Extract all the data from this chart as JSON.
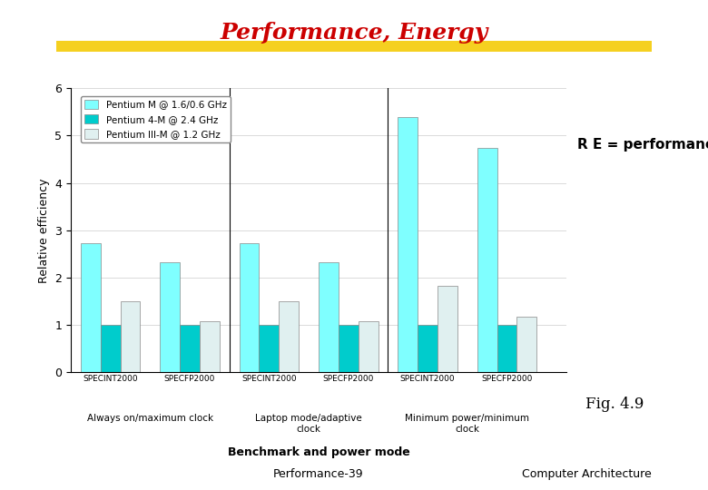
{
  "title": "Performance, Energy",
  "title_color": "#cc0000",
  "re_label": "R E = performance / power",
  "ylabel": "Relative efficiency",
  "xlabel": "Benchmark and power mode",
  "footer_left": "Performance-39",
  "footer_right": "Computer Architecture",
  "fig_label": "Fig. 4.9",
  "ylim": [
    0,
    6
  ],
  "yticks": [
    0,
    1,
    2,
    3,
    4,
    5,
    6
  ],
  "legend_labels": [
    "Pentium M @ 1.6/0.6 GHz",
    "Pentium 4-M @ 2.4 GHz",
    "Pentium III-M @ 1.2 GHz"
  ],
  "legend_colors": [
    "#7fffff",
    "#00cccc",
    "#e0f0f0"
  ],
  "bar_groups": [
    {
      "label": "SPECINT2000",
      "values": [
        2.73,
        1.0,
        1.5
      ]
    },
    {
      "label": "SPECFP2000",
      "values": [
        2.33,
        1.0,
        1.08
      ]
    },
    {
      "label": "SPECINT2000",
      "values": [
        2.73,
        1.0,
        1.5
      ]
    },
    {
      "label": "SPECFP2000",
      "values": [
        2.33,
        1.0,
        1.08
      ]
    },
    {
      "label": "SPECINT2000",
      "values": [
        5.4,
        1.0,
        1.82
      ]
    },
    {
      "label": "SPECFP2000",
      "values": [
        4.73,
        1.0,
        1.18
      ]
    }
  ],
  "bar_colors": [
    "#7fffff",
    "#00cccc",
    "#e0f0f0"
  ],
  "bar_edge_color": "#888888",
  "background_color": "#ffffff",
  "highlight_color": "#f5d020",
  "mode_labels": [
    "Always on/maximum clock",
    "Laptop mode/adaptive\nclock",
    "Minimum power/minimum\nclock"
  ],
  "mode_centers": [
    0.5,
    2.5,
    4.5
  ]
}
